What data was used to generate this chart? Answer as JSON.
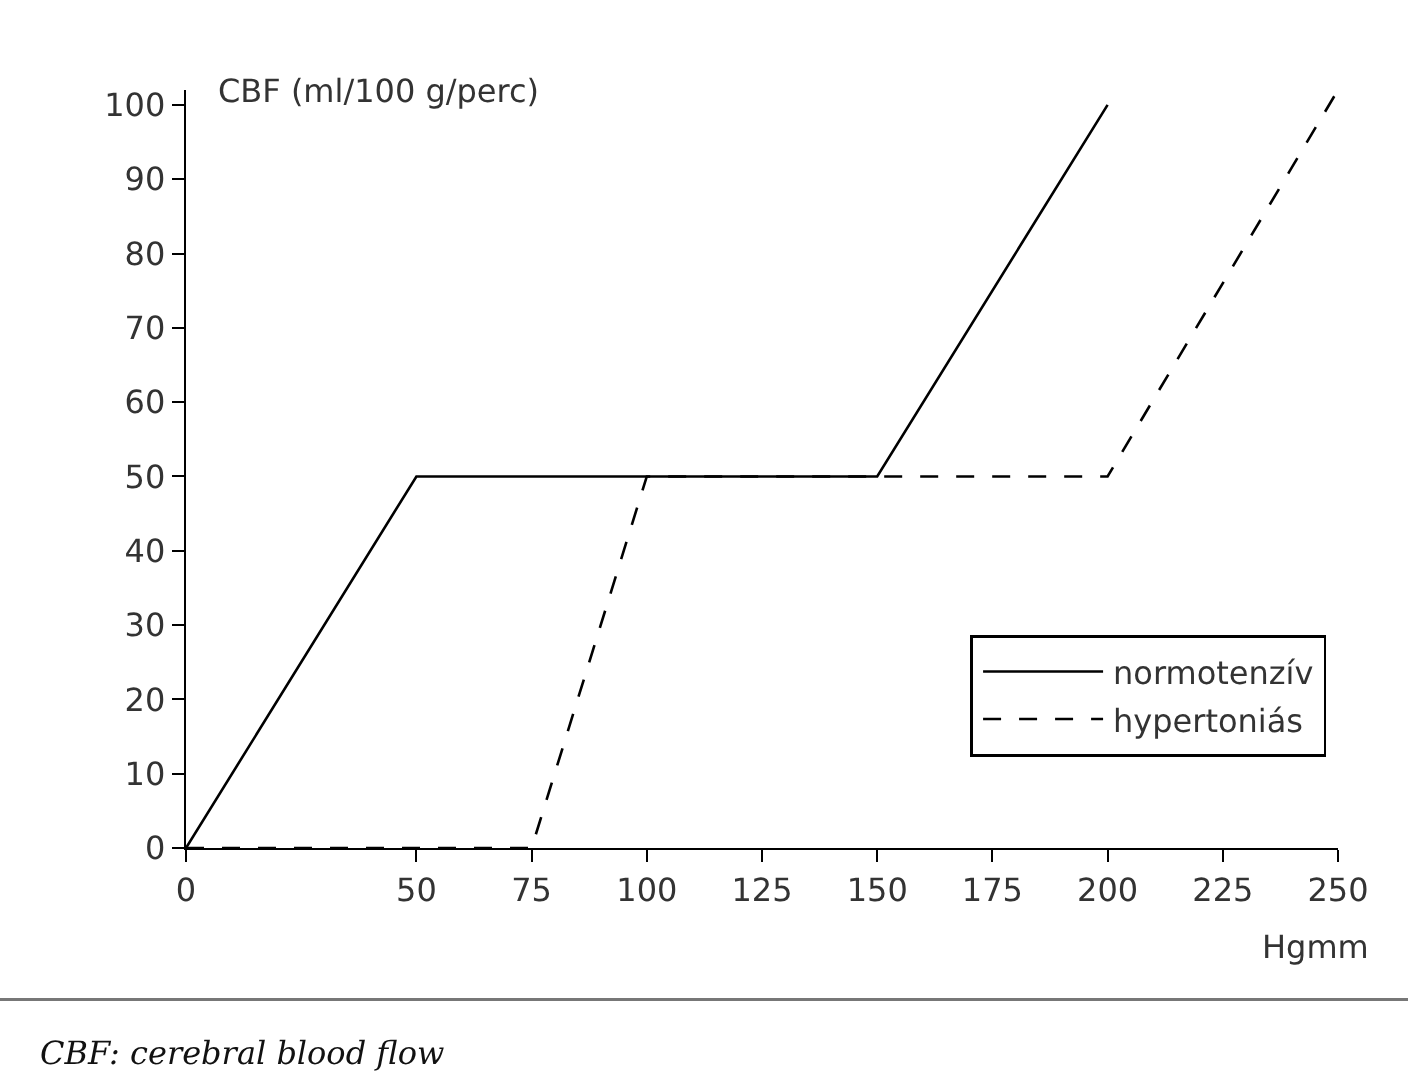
{
  "chart_data": {
    "type": "line",
    "ylabel": "CBF (ml/100 g/perc)",
    "xlabel": "Hgmm",
    "annotations": [
      "CBF: cerebral blood flow"
    ],
    "series": [
      {
        "name": "normotenzív",
        "color": "#000000",
        "line_style": "solid",
        "x": [
          0,
          50,
          150,
          200
        ],
        "values": [
          0,
          50,
          50,
          100
        ]
      },
      {
        "name": "hypertoniás",
        "color": "#000000",
        "line_style": "dashed",
        "x": [
          0,
          75,
          100,
          200,
          250
        ],
        "values": [
          0,
          0,
          50,
          50,
          102
        ]
      }
    ],
    "xlim": [
      0,
      250
    ],
    "xticks": [
      0,
      50,
      75,
      100,
      125,
      150,
      175,
      200,
      225,
      250
    ],
    "ylim": [
      0,
      102
    ],
    "yticks": [
      0,
      10,
      20,
      30,
      40,
      50,
      60,
      70,
      80,
      90,
      100
    ],
    "legend": "bottom right",
    "marker": "none"
  }
}
